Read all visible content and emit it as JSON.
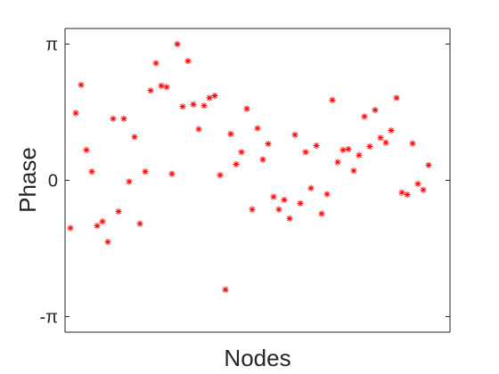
{
  "chart_data": {
    "type": "scatter",
    "xlabel": "Nodes",
    "ylabel": "Phase",
    "xlim": [
      0,
      72
    ],
    "ylim": [
      -3.5,
      3.5
    ],
    "yticks": [
      {
        "value": -3.14159,
        "label": "-π"
      },
      {
        "value": 0,
        "label": "0"
      },
      {
        "value": 3.14159,
        "label": "π"
      }
    ],
    "marker": "asterisk",
    "color": "#ff0000",
    "grid": false,
    "series": [
      {
        "x": [
          1,
          2,
          3,
          4,
          5,
          6,
          7,
          8,
          9,
          10,
          11,
          12,
          13,
          14,
          15,
          16,
          17,
          18,
          19,
          20,
          21,
          22,
          23,
          24,
          25,
          26,
          27,
          28,
          29,
          30,
          31,
          32,
          33,
          34,
          35,
          36,
          37,
          38,
          39,
          40,
          41,
          42,
          43,
          44,
          45,
          46,
          47,
          48,
          49,
          50,
          51,
          52,
          53,
          54,
          55,
          56,
          57,
          58,
          59,
          60,
          61,
          62,
          63,
          64,
          65,
          66,
          67,
          68,
          69,
          70,
          71
        ],
        "y": [
          -1.1,
          1.55,
          2.2,
          0.7,
          0.2,
          -1.05,
          -0.95,
          -1.42,
          1.42,
          -0.72,
          1.42,
          -0.03,
          1.0,
          -1.0,
          0.2,
          2.07,
          2.7,
          2.18,
          2.15,
          0.15,
          3.14,
          1.7,
          2.75,
          1.75,
          1.18,
          1.72,
          1.9,
          1.95,
          0.12,
          -2.52,
          1.07,
          0.37,
          0.65,
          1.65,
          -0.67,
          1.2,
          0.48,
          0.84,
          -0.38,
          -0.67,
          -0.45,
          -0.88,
          1.05,
          -0.53,
          0.65,
          -0.18,
          0.8,
          -0.77,
          -0.32,
          1.85,
          0.42,
          0.7,
          0.72,
          0.22,
          0.58,
          1.47,
          0.78,
          1.62,
          0.98,
          0.87,
          1.15,
          1.9,
          -0.28,
          -0.33,
          0.85,
          -0.08,
          -0.22,
          0.35,
          null,
          null,
          null
        ]
      }
    ]
  }
}
